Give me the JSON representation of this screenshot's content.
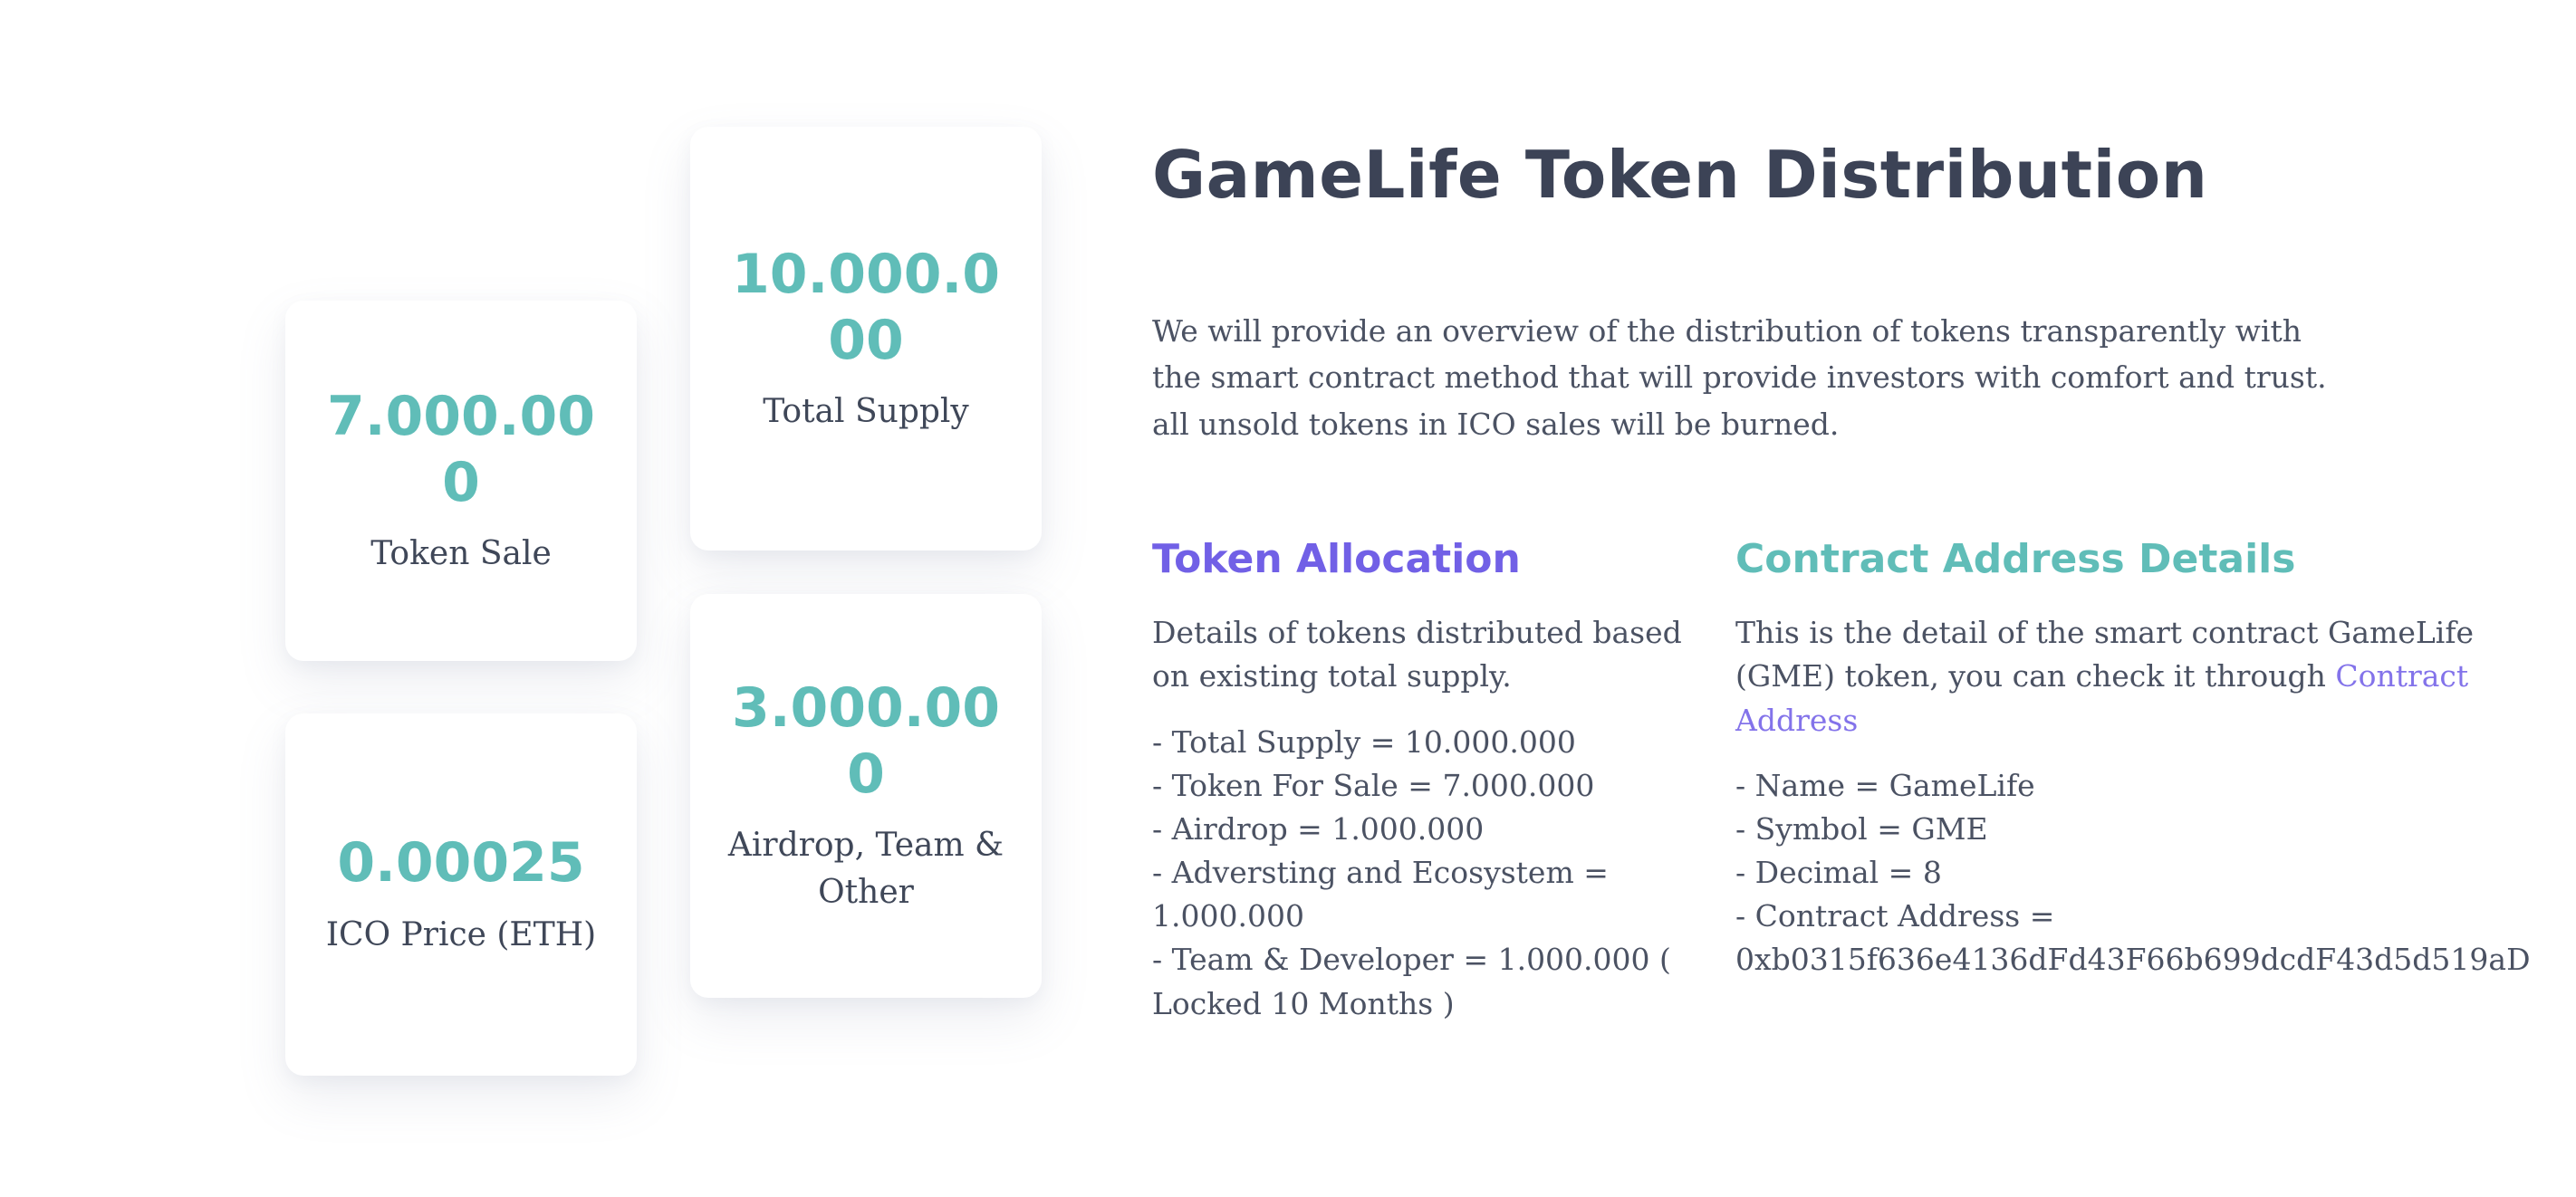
{
  "page": {
    "background_color": "#ffffff",
    "accent_teal": "#60bdb8",
    "accent_purple": "#7160e6",
    "link_purple": "#8373ea",
    "title_color": "#3c4356",
    "body_text_color": "#4b5263"
  },
  "stats": {
    "cards": [
      {
        "id": "token-sale",
        "value": "7.000.000",
        "label": "Token Sale"
      },
      {
        "id": "total-supply",
        "value": "10.000.000",
        "label": "Total Supply"
      },
      {
        "id": "ico-price",
        "value": "0.00025",
        "label": "ICO Price (ETH)"
      },
      {
        "id": "airdrop",
        "value": "3.000.000",
        "label": "Airdrop, Team & Other"
      }
    ]
  },
  "content": {
    "title": "GameLife Token Distribution",
    "intro": "We will provide an overview of the distribution of tokens transparently with the smart contract method that will provide investors with comfort and trust. all unsold tokens in ICO sales will be burned.",
    "token_allocation": {
      "heading": "Token Allocation",
      "description": "Details of tokens distributed based on existing total supply.",
      "items": [
        "- Total Supply = 10.000.000",
        "- Token For Sale = 7.000.000",
        "- Airdrop = 1.000.000",
        "- Adversting and Ecosystem = 1.000.000",
        "- Team & Developer = 1.000.000 ( Locked 10 Months )"
      ]
    },
    "contract_details": {
      "heading": "Contract Address Details",
      "description_before_link": "This is the detail of the smart contract GameLife (GME) token, you can check it through ",
      "link_text": "Contract Address",
      "items": [
        "- Name = GameLife",
        "- Symbol = GME",
        "- Decimal = 8",
        "- Contract Address = 0xb0315f636e4136dFd43F66b699dcdF43d5d519aD"
      ]
    }
  }
}
